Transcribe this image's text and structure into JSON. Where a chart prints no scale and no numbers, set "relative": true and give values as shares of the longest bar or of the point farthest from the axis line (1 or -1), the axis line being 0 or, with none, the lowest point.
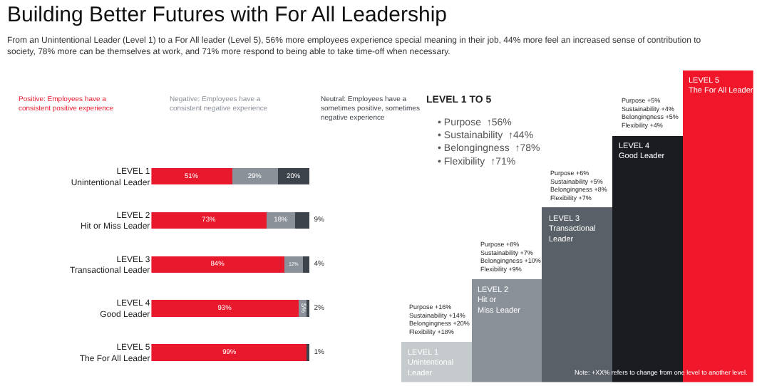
{
  "chart_data": [
    {
      "type": "bar",
      "orientation": "horizontal",
      "stacked": true,
      "title": "Building Better Futures with For All Leadership",
      "subtitle": "From an Unintentional Leader (Level 1) to a For All leader (Level 5), 56% more employees experience special meaning in their job, 44% more feel an increased sense of contribution to society, 78% more can be themselves at work, and 71% more respond to being able to take time-off when necessary.",
      "categories": [
        "LEVEL 1\nUnintentional Leader",
        "LEVEL 2\nHit or Miss Leader",
        "LEVEL 3\nTransactional Leader",
        "LEVEL 4\nGood Leader",
        "LEVEL 5\nThe For All Leader"
      ],
      "series": [
        {
          "name": "Positive: Employees have a consistent positive experience",
          "color": "#e8192c",
          "values": [
            51,
            73,
            84,
            93,
            99
          ],
          "value_labels": [
            "51%",
            "73%",
            "84%",
            "93%",
            "99%"
          ]
        },
        {
          "name": "Negative: Employees have a consistent negative experience",
          "color": "#8a9199",
          "values": [
            29,
            18,
            12,
            5,
            0
          ],
          "value_labels": [
            "29%",
            "18%",
            "12%",
            "5%",
            null
          ]
        },
        {
          "name": "Neutral: Employees have a sometimes positive, sometimes negative experience",
          "color": "#3d434a",
          "values": [
            20,
            9,
            4,
            2,
            1
          ],
          "value_labels": [
            "20%",
            "9%",
            "4%",
            "2%",
            "1%"
          ]
        }
      ],
      "legend": "top"
    },
    {
      "type": "bar",
      "relative": true,
      "title": "LEVEL 1 TO 5",
      "categories": [
        "LEVEL 1\nUnintentional\nLeader",
        "LEVEL 2\nHit or\nMiss Leader",
        "LEVEL 3\nTransactional\nLeader",
        "LEVEL 4\nGood Leader",
        "LEVEL 5\nThe For All Leader"
      ],
      "values": [
        0.13,
        0.33,
        0.56,
        0.79,
        1.0
      ],
      "colors": [
        "#c5cacd",
        "#8a9199",
        "#5a6068",
        "#1b1c22",
        "#f0172a"
      ],
      "annotations": [
        "Purpose +16%\nSustainability +14%\nBelongingness +20%\nFlexibility +18%",
        "Purpose +8%\nSustainability +7%\nBelongingness +10%\nFlexibility +9%",
        "Purpose +6%\nSustainability +5%\nBelongingness +8%\nFlexibility +7%",
        "Purpose +5%\nSustainability +4%\nBelongingness +5%\nFlexibility +4%",
        "• Purpose  ↑56%\n• Sustainability  ↑44%\n• Belongingness  ↑78%\n• Flexibility  ↑71%",
        "Note: +XX% refers to change from one level to another level."
      ]
    }
  ]
}
